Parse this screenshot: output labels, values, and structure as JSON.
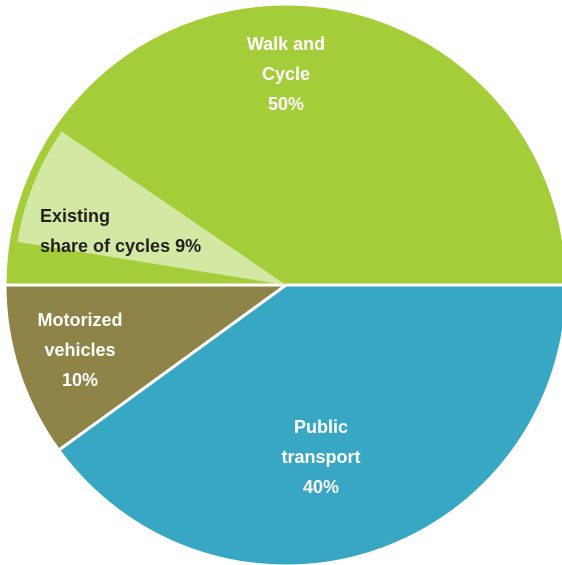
{
  "chart_data": {
    "type": "pie",
    "categories": [
      [
        "Walk and",
        "Cycle"
      ],
      [
        "Public",
        "transport"
      ],
      [
        "Motorized",
        "vehicles"
      ]
    ],
    "values": [
      50,
      40,
      10
    ],
    "value_labels": [
      "50%",
      "40%",
      "10%"
    ],
    "colors": [
      "#a5cd39",
      "#38a7c4",
      "#8f8447"
    ],
    "highlight": {
      "label": [
        "Existing",
        "share of cycles"
      ],
      "value": 9,
      "value_label": "9%",
      "color": "#d3e8a2"
    }
  }
}
